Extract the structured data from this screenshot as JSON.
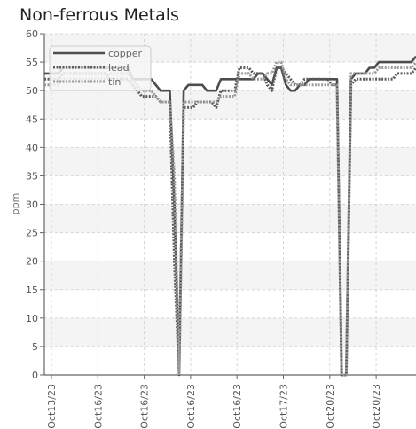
{
  "chart_data": {
    "type": "line",
    "title": "Non-ferrous Metals",
    "xlabel": "",
    "ylabel": "ppm",
    "ylim": [
      0,
      60
    ],
    "yticks": [
      0,
      5,
      10,
      15,
      20,
      25,
      30,
      35,
      40,
      45,
      50,
      55,
      60
    ],
    "xtick_labels": [
      "Oct13/23",
      "Oct16/23",
      "Oct16/23",
      "Oct16/23",
      "Oct16/23",
      "Oct17/23",
      "Oct20/23",
      "Oct20/23"
    ],
    "grid": true,
    "legend_position": "top-left",
    "x": [
      0,
      1,
      2,
      3,
      4,
      5,
      6,
      7,
      8,
      9,
      10,
      11,
      12,
      13,
      14,
      15,
      16,
      17,
      18,
      19,
      20,
      21,
      22,
      23,
      24,
      25,
      26,
      27,
      28,
      29,
      30,
      31,
      32,
      33,
      34,
      35,
      36,
      37,
      38,
      39,
      40,
      41,
      42,
      43,
      44,
      45,
      46,
      47,
      48,
      49,
      50,
      51,
      52,
      53,
      54,
      55,
      56,
      57,
      58,
      59,
      60,
      61,
      62,
      63,
      64,
      65,
      66,
      67,
      68,
      69,
      70,
      71,
      72,
      73,
      74,
      75,
      76,
      77,
      78,
      79,
      80
    ],
    "series": [
      {
        "name": "copper",
        "color": "#4d4d4d",
        "style": "solid",
        "values": [
          53,
          53,
          53,
          53,
          54,
          54,
          54,
          54,
          54,
          54,
          54,
          54,
          54,
          54,
          54,
          54,
          54,
          54,
          54,
          52,
          52,
          52,
          52,
          52,
          51,
          50,
          50,
          50,
          30,
          0,
          50,
          51,
          51,
          51,
          51,
          50,
          50,
          50,
          52,
          52,
          52,
          52,
          52,
          52,
          52,
          52,
          53,
          53,
          52,
          51,
          54,
          54,
          51,
          50,
          50,
          51,
          51,
          52,
          52,
          52,
          52,
          52,
          52,
          52,
          0,
          0,
          52,
          53,
          53,
          53,
          54,
          54,
          55,
          55,
          55,
          55,
          55,
          55,
          55,
          55,
          56
        ]
      },
      {
        "name": "lead",
        "color": "#5c5c5c",
        "style": "dotted",
        "values": [
          52,
          52,
          52,
          52,
          53,
          53,
          53,
          53,
          53,
          53,
          53,
          53,
          53,
          53,
          52,
          52,
          52,
          52,
          52,
          51,
          50,
          49,
          49,
          49,
          49,
          48,
          48,
          48,
          20,
          0,
          47,
          47,
          47,
          48,
          48,
          48,
          48,
          47,
          50,
          50,
          50,
          50,
          54,
          54,
          54,
          53,
          53,
          53,
          51,
          50,
          54,
          54,
          53,
          52,
          51,
          51,
          52,
          52,
          52,
          52,
          52,
          52,
          51,
          51,
          0,
          0,
          51,
          52,
          52,
          52,
          52,
          52,
          52,
          52,
          52,
          52,
          53,
          53,
          53,
          53,
          54
        ]
      },
      {
        "name": "tin",
        "color": "#9a9a9a",
        "style": "dotted",
        "values": [
          51,
          51,
          51,
          51,
          52,
          52,
          52,
          52,
          52,
          52,
          52,
          52,
          52,
          52,
          53,
          53,
          53,
          53,
          53,
          52,
          51,
          50,
          50,
          50,
          49,
          48,
          48,
          48,
          35,
          0,
          48,
          48,
          48,
          48,
          48,
          48,
          48,
          48,
          49,
          49,
          49,
          49,
          53,
          53,
          53,
          52,
          52,
          52,
          53,
          53,
          55,
          55,
          52,
          51,
          51,
          51,
          51,
          51,
          51,
          51,
          51,
          51,
          51,
          51,
          0,
          0,
          53,
          53,
          53,
          53,
          53,
          53,
          54,
          54,
          54,
          54,
          54,
          54,
          54,
          54,
          55
        ]
      }
    ]
  }
}
